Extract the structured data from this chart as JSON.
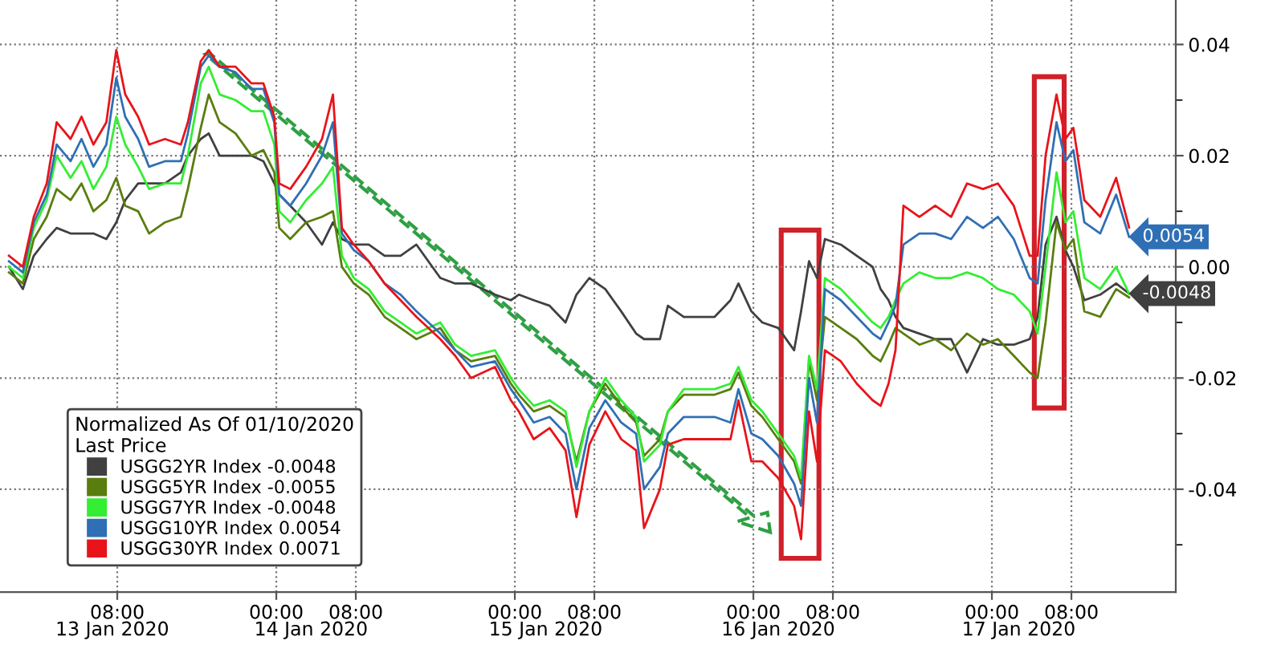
{
  "chart_data": {
    "type": "line",
    "x": [
      "2020-01-12T21:06",
      "2020-01-12T22:30",
      "2020-01-12T23:36",
      "2020-01-13T00:54",
      "2020-01-13T01:54",
      "2020-01-13T03:18",
      "2020-01-13T04:24",
      "2020-01-13T05:36",
      "2020-01-13T06:54",
      "2020-01-13T07:54",
      "2020-01-13T08:48",
      "2020-01-13T10:06",
      "2020-01-13T11:12",
      "2020-01-13T12:48",
      "2020-01-13T14:24",
      "2020-01-13T15:06",
      "2020-01-13T16:24",
      "2020-01-13T17:12",
      "2020-01-13T18:18",
      "2020-01-13T19:54",
      "2020-01-13T21:30",
      "2020-01-13T22:42",
      "2020-01-13T23:48",
      "2020-01-14T00:18",
      "2020-01-14T01:24",
      "2020-01-14T03:00",
      "2020-01-14T04:36",
      "2020-01-14T05:42",
      "2020-01-14T06:36",
      "2020-01-14T07:48",
      "2020-01-14T09:18",
      "2020-01-14T10:54",
      "2020-01-14T12:30",
      "2020-01-14T14:06",
      "2020-01-14T16:30",
      "2020-01-14T18:00",
      "2020-01-14T19:36",
      "2020-01-14T22:00",
      "2020-01-14T23:36",
      "2020-01-15T00:24",
      "2020-01-15T01:54",
      "2020-01-15T03:30",
      "2020-01-15T05:06",
      "2020-01-15T06:12",
      "2020-01-15T07:30",
      "2020-01-15T09:06",
      "2020-01-15T10:42",
      "2020-01-15T12:12",
      "2020-01-15T13:00",
      "2020-01-15T14:36",
      "2020-01-15T15:24",
      "2020-01-15T17:00",
      "2020-01-15T18:36",
      "2020-01-15T20:06",
      "2020-01-15T21:42",
      "2020-01-15T22:30",
      "2020-01-15T23:48",
      "2020-01-16T00:54",
      "2020-01-16T02:30",
      "2020-01-16T04:06",
      "2020-01-16T04:48",
      "2020-01-16T05:36",
      "2020-01-16T06:24",
      "2020-01-16T07:12",
      "2020-01-16T08:48",
      "2020-01-16T10:24",
      "2020-01-16T12:00",
      "2020-01-16T12:48",
      "2020-01-16T13:36",
      "2020-01-16T14:18",
      "2020-01-16T15:06",
      "2020-01-16T16:42",
      "2020-01-16T18:18",
      "2020-01-16T19:54",
      "2020-01-16T21:30",
      "2020-01-16T23:06",
      "2020-01-17T00:36",
      "2020-01-17T02:12",
      "2020-01-17T03:48",
      "2020-01-17T04:36",
      "2020-01-17T05:24",
      "2020-01-17T06:30",
      "2020-01-17T07:24",
      "2020-01-17T08:12",
      "2020-01-17T09:18",
      "2020-01-17T10:54",
      "2020-01-17T12:30",
      "2020-01-17T13:48"
    ],
    "series": [
      {
        "name": "USGG2YR Index -0.0048",
        "color": "#404040",
        "values": [
          0.0,
          -0.004,
          0.002,
          0.005,
          0.007,
          0.006,
          0.006,
          0.006,
          0.005,
          0.008,
          0.012,
          0.015,
          0.015,
          0.015,
          0.017,
          0.02,
          0.023,
          0.024,
          0.02,
          0.02,
          0.02,
          0.019,
          0.015,
          0.013,
          0.011,
          0.008,
          0.004,
          0.008,
          0.005,
          0.004,
          0.004,
          0.002,
          0.002,
          0.004,
          -0.002,
          -0.003,
          -0.003,
          -0.005,
          -0.006,
          -0.005,
          -0.006,
          -0.007,
          -0.01,
          -0.005,
          -0.002,
          -0.004,
          -0.008,
          -0.012,
          -0.013,
          -0.013,
          -0.007,
          -0.009,
          -0.009,
          -0.009,
          -0.006,
          -0.003,
          -0.008,
          -0.01,
          -0.011,
          -0.015,
          -0.008,
          0.001,
          -0.002,
          0.005,
          0.004,
          0.002,
          0.0,
          -0.004,
          -0.006,
          -0.009,
          -0.011,
          -0.012,
          -0.013,
          -0.013,
          -0.019,
          -0.013,
          -0.014,
          -0.014,
          -0.013,
          -0.009,
          0.004,
          0.009,
          0.003,
          0.0,
          -0.006,
          -0.005,
          -0.003,
          -0.0048
        ],
        "value_labels": [
          null,
          null,
          null,
          null,
          null,
          null,
          null,
          null,
          null,
          null,
          null,
          null,
          null,
          null,
          null,
          null,
          null,
          null,
          null,
          null,
          null,
          null,
          null,
          null,
          null,
          null,
          null,
          null,
          null,
          null,
          null,
          null,
          null,
          null,
          null,
          null,
          null,
          null,
          null,
          null,
          null,
          null,
          null,
          null,
          null,
          null,
          null,
          null,
          null,
          null,
          null,
          null,
          null,
          null,
          null,
          null,
          null,
          null,
          null,
          null,
          null,
          null,
          null,
          null,
          null,
          null,
          null,
          null,
          null,
          null,
          null,
          null,
          null,
          null,
          null,
          null,
          null,
          null,
          null,
          null,
          null,
          null,
          null,
          null,
          null,
          null,
          null,
          "-0.0048"
        ]
      },
      {
        "name": "USGG5YR Index -0.0055",
        "color": "#5a7d0f",
        "values": [
          -0.001,
          -0.003,
          0.005,
          0.009,
          0.014,
          0.012,
          0.015,
          0.01,
          0.012,
          0.016,
          0.011,
          0.01,
          0.006,
          0.008,
          0.009,
          0.014,
          0.025,
          0.031,
          0.026,
          0.024,
          0.02,
          0.021,
          0.017,
          0.007,
          0.005,
          0.008,
          0.009,
          0.01,
          0.0,
          -0.003,
          -0.005,
          -0.009,
          -0.011,
          -0.013,
          -0.011,
          -0.015,
          -0.017,
          -0.016,
          -0.021,
          -0.023,
          -0.026,
          -0.025,
          -0.027,
          -0.035,
          -0.026,
          -0.021,
          -0.025,
          -0.028,
          -0.034,
          -0.031,
          -0.026,
          -0.023,
          -0.023,
          -0.023,
          -0.022,
          -0.019,
          -0.025,
          -0.027,
          -0.031,
          -0.035,
          -0.039,
          -0.017,
          -0.024,
          -0.009,
          -0.011,
          -0.013,
          -0.016,
          -0.017,
          -0.014,
          -0.011,
          -0.012,
          -0.014,
          -0.013,
          -0.015,
          -0.012,
          -0.014,
          -0.013,
          -0.016,
          -0.019,
          -0.02,
          -0.01,
          0.008,
          0.003,
          0.005,
          -0.008,
          -0.009,
          -0.004,
          -0.0055
        ]
      },
      {
        "name": "USGG7YR Index -0.0048",
        "color": "#33ee33",
        "values": [
          0.0,
          -0.002,
          0.007,
          0.012,
          0.02,
          0.016,
          0.019,
          0.014,
          0.018,
          0.027,
          0.022,
          0.018,
          0.014,
          0.015,
          0.015,
          0.02,
          0.033,
          0.036,
          0.031,
          0.03,
          0.028,
          0.028,
          0.022,
          0.01,
          0.008,
          0.012,
          0.015,
          0.018,
          0.002,
          -0.002,
          -0.004,
          -0.008,
          -0.01,
          -0.012,
          -0.01,
          -0.014,
          -0.016,
          -0.015,
          -0.02,
          -0.022,
          -0.025,
          -0.024,
          -0.026,
          -0.036,
          -0.026,
          -0.02,
          -0.024,
          -0.027,
          -0.035,
          -0.032,
          -0.026,
          -0.022,
          -0.022,
          -0.022,
          -0.021,
          -0.018,
          -0.024,
          -0.026,
          -0.03,
          -0.034,
          -0.038,
          -0.016,
          -0.022,
          -0.002,
          -0.004,
          -0.007,
          -0.01,
          -0.011,
          -0.009,
          -0.006,
          -0.003,
          -0.001,
          -0.002,
          -0.002,
          -0.001,
          -0.002,
          -0.004,
          -0.005,
          -0.008,
          -0.012,
          0.0,
          0.017,
          0.008,
          0.01,
          -0.002,
          -0.004,
          0.0,
          -0.0048
        ]
      },
      {
        "name": "USGG10YR Index 0.0054",
        "color": "#2f6fb5",
        "values": [
          0.001,
          -0.001,
          0.008,
          0.013,
          0.022,
          0.019,
          0.023,
          0.018,
          0.022,
          0.034,
          0.027,
          0.023,
          0.018,
          0.019,
          0.019,
          0.024,
          0.036,
          0.038,
          0.036,
          0.035,
          0.032,
          0.032,
          0.026,
          0.013,
          0.011,
          0.015,
          0.02,
          0.026,
          0.006,
          0.003,
          0.001,
          -0.003,
          -0.005,
          -0.008,
          -0.012,
          -0.015,
          -0.018,
          -0.017,
          -0.022,
          -0.024,
          -0.028,
          -0.027,
          -0.03,
          -0.04,
          -0.029,
          -0.024,
          -0.028,
          -0.03,
          -0.04,
          -0.036,
          -0.03,
          -0.027,
          -0.027,
          -0.027,
          -0.028,
          -0.022,
          -0.03,
          -0.031,
          -0.034,
          -0.039,
          -0.043,
          -0.02,
          -0.028,
          -0.004,
          -0.006,
          -0.009,
          -0.012,
          -0.013,
          -0.01,
          -0.007,
          0.004,
          0.006,
          0.006,
          0.005,
          0.009,
          0.007,
          0.009,
          0.005,
          -0.002,
          -0.003,
          0.012,
          0.026,
          0.019,
          0.021,
          0.008,
          0.006,
          0.013,
          0.0054
        ],
        "value_labels": [
          null,
          null,
          null,
          null,
          null,
          null,
          null,
          null,
          null,
          null,
          null,
          null,
          null,
          null,
          null,
          null,
          null,
          null,
          null,
          null,
          null,
          null,
          null,
          null,
          null,
          null,
          null,
          null,
          null,
          null,
          null,
          null,
          null,
          null,
          null,
          null,
          null,
          null,
          null,
          null,
          null,
          null,
          null,
          null,
          null,
          null,
          null,
          null,
          null,
          null,
          null,
          null,
          null,
          null,
          null,
          null,
          null,
          null,
          null,
          null,
          null,
          null,
          null,
          null,
          null,
          null,
          null,
          null,
          null,
          null,
          null,
          null,
          null,
          null,
          null,
          null,
          null,
          null,
          null,
          null,
          null,
          null,
          null,
          null,
          null,
          null,
          null,
          "0.0054"
        ]
      },
      {
        "name": "USGG30YR Index 0.0071",
        "color": "#e8141a",
        "values": [
          0.002,
          0.0,
          0.009,
          0.015,
          0.026,
          0.023,
          0.027,
          0.022,
          0.026,
          0.039,
          0.031,
          0.027,
          0.022,
          0.023,
          0.022,
          0.026,
          0.037,
          0.039,
          0.036,
          0.036,
          0.033,
          0.033,
          0.027,
          0.015,
          0.014,
          0.018,
          0.023,
          0.031,
          0.007,
          0.004,
          0.001,
          -0.003,
          -0.006,
          -0.009,
          -0.013,
          -0.016,
          -0.02,
          -0.018,
          -0.024,
          -0.026,
          -0.031,
          -0.029,
          -0.033,
          -0.045,
          -0.032,
          -0.026,
          -0.031,
          -0.033,
          -0.047,
          -0.04,
          -0.032,
          -0.031,
          -0.031,
          -0.031,
          -0.031,
          -0.024,
          -0.035,
          -0.035,
          -0.038,
          -0.043,
          -0.049,
          -0.026,
          -0.035,
          -0.015,
          -0.017,
          -0.021,
          -0.024,
          -0.025,
          -0.021,
          -0.015,
          0.011,
          0.009,
          0.011,
          0.009,
          0.015,
          0.014,
          0.015,
          0.011,
          0.002,
          0.002,
          0.02,
          0.031,
          0.023,
          0.025,
          0.012,
          0.009,
          0.016,
          0.0071
        ]
      }
    ],
    "xlim": [
      "2020-01-12T20:12",
      "2020-01-17T18:30"
    ],
    "ylim": [
      -0.0585,
      0.048
    ],
    "xticks": [
      {
        "value": "2020-01-13T08:00",
        "label": "08:00"
      },
      {
        "value": "2020-01-14T00:00",
        "label": "00:00"
      },
      {
        "value": "2020-01-14T08:00",
        "label": "08:00"
      },
      {
        "value": "2020-01-15T00:00",
        "label": "00:00"
      },
      {
        "value": "2020-01-15T08:00",
        "label": "08:00"
      },
      {
        "value": "2020-01-16T00:00",
        "label": "00:00"
      },
      {
        "value": "2020-01-16T08:00",
        "label": "08:00"
      },
      {
        "value": "2020-01-17T00:00",
        "label": "00:00"
      },
      {
        "value": "2020-01-17T08:00",
        "label": "08:00"
      }
    ],
    "x2lim": [
      "2020-01-12T20:12",
      "2020-01-17T18:30"
    ],
    "x2ticks": [
      {
        "value": "2020-01-13T07:30",
        "label": "13 Jan 2020"
      },
      {
        "value": "2020-01-14T03:30",
        "label": "14 Jan 2020"
      },
      {
        "value": "2020-01-15T03:06",
        "label": "15 Jan 2020"
      },
      {
        "value": "2020-01-16T02:30",
        "label": "16 Jan 2020"
      },
      {
        "value": "2020-01-17T02:42",
        "label": "17 Jan 2020"
      }
    ],
    "yticks": [
      0.04,
      {
        "value": 0.03,
        "label": null
      },
      0.02,
      {
        "value": 0.01,
        "label": null
      },
      {
        "value": 0.0,
        "label": "0.00"
      },
      {
        "value": -0.01,
        "label": null
      },
      -0.02,
      {
        "value": -0.03,
        "label": null
      },
      -0.04,
      {
        "value": -0.05,
        "label": null
      }
    ],
    "legend": "bottom left",
    "legend_title": "Normalized As Of 01/10/2020\nLast Price",
    "grid": true,
    "line_style": "solid",
    "marker": "none"
  }
}
